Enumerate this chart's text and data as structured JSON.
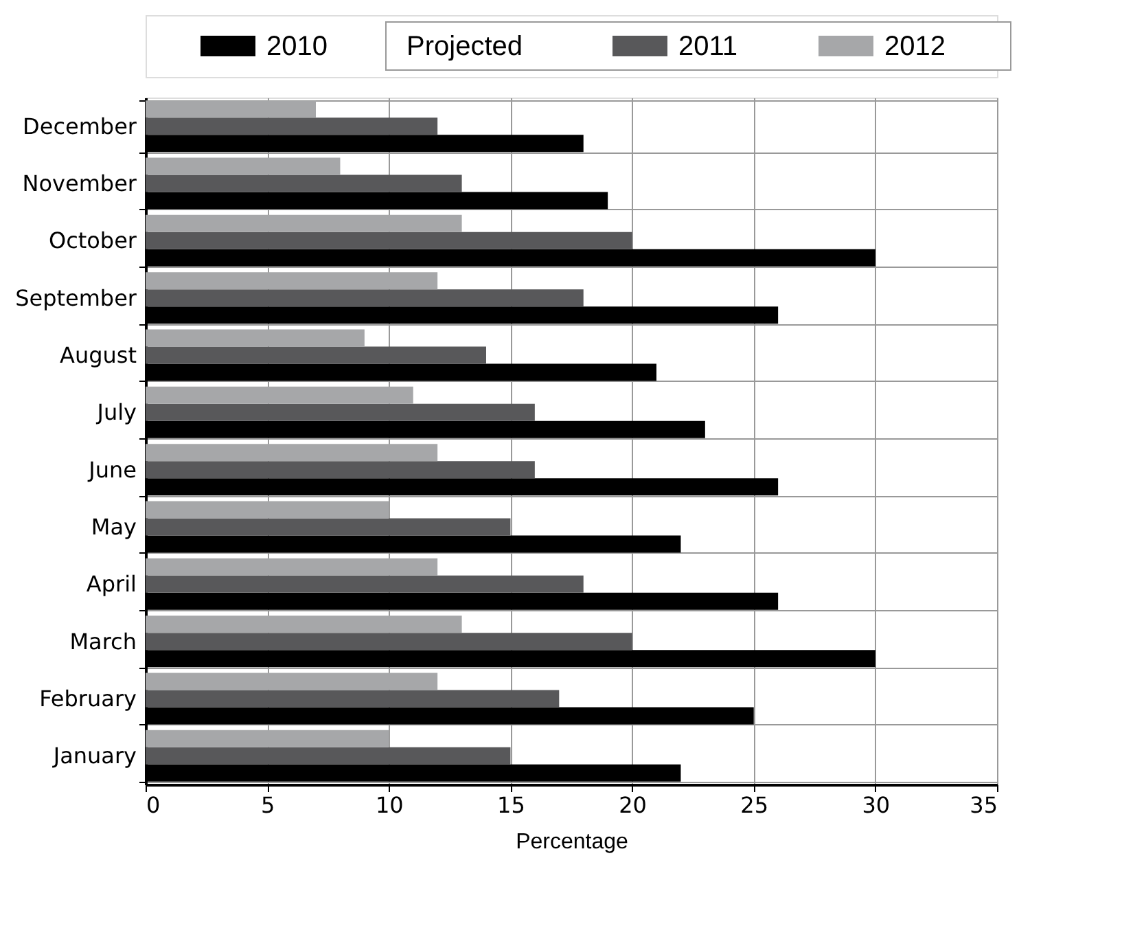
{
  "chart_data": {
    "type": "bar",
    "orientation": "horizontal",
    "xlabel": "Percentage",
    "categories": [
      "December",
      "November",
      "October",
      "September",
      "August",
      "July",
      "June",
      "May",
      "April",
      "March",
      "February",
      "January"
    ],
    "series": [
      {
        "name": "2010",
        "color": "#000000",
        "values": [
          18,
          19,
          30,
          26,
          21,
          23,
          26,
          22,
          26,
          30,
          25,
          22
        ]
      },
      {
        "name": "2011",
        "color": "#58585a",
        "values": [
          12,
          13,
          20,
          18,
          14,
          16,
          16,
          15,
          18,
          20,
          17,
          15
        ]
      },
      {
        "name": "2012",
        "color": "#a6a7a9",
        "values": [
          7,
          8,
          13,
          12,
          9,
          11,
          12,
          10,
          12,
          13,
          12,
          10
        ]
      }
    ],
    "annotations": [
      "Projected"
    ],
    "xlim": [
      0,
      35
    ],
    "xticks": [
      0,
      5,
      10,
      15,
      20,
      25,
      30,
      35
    ],
    "grid": true,
    "legend": "top"
  }
}
